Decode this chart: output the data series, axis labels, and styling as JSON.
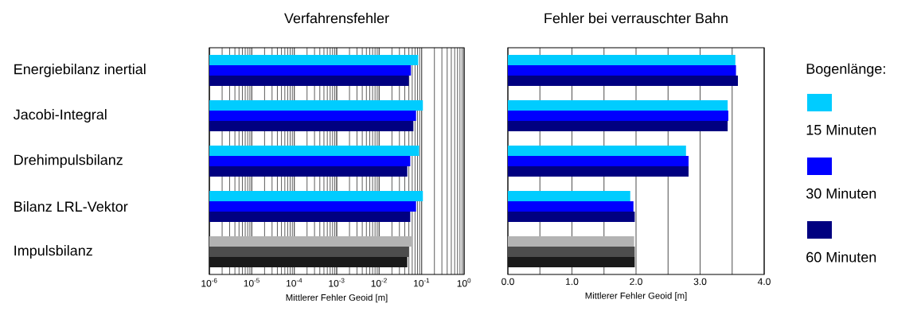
{
  "chart_data": [
    {
      "type": "bar",
      "orientation": "horizontal",
      "title": "Verfahrensfehler",
      "xlabel": "Mittlerer Fehler Geoid [m]",
      "log": "x",
      "grid": "x",
      "categories": [
        "Energiebilanz inertial",
        "Jacobi-Integral",
        "Drehimpulsbilanz",
        "Bilanz LRL-Vektor",
        "Impulsbilanz"
      ],
      "xlim": [
        1e-06,
        1
      ],
      "xticks": [
        {
          "value": 1e-06,
          "label": "10$^{-6}$"
        },
        {
          "value": 1e-05,
          "label": "10$^{-5}$"
        },
        {
          "value": 0.0001,
          "label": "10$^{-4}$"
        },
        {
          "value": 0.001,
          "label": "10$^{-3}$"
        },
        {
          "value": 0.01,
          "label": "10$^{-2}$"
        },
        {
          "value": 0.1,
          "label": "10$^{-1}$"
        },
        {
          "value": 1,
          "label": "10$^{0}$"
        }
      ],
      "series": [
        {
          "colors": [
            "#00ccff",
            "#00ccff",
            "#00ccff",
            "#00ccff",
            "#b3b3b3"
          ],
          "values": [
            0.083,
            0.107,
            0.087,
            0.107,
            0.062
          ]
        },
        {
          "colors": [
            "#0000ff",
            "#0000ff",
            "#0000ff",
            "#0000ff",
            "#4d4d4d"
          ],
          "values": [
            0.056,
            0.074,
            0.054,
            0.074,
            0.05
          ]
        },
        {
          "colors": [
            "#000080",
            "#000080",
            "#000080",
            "#000080",
            "#1a1a1a"
          ],
          "values": [
            0.05,
            0.064,
            0.046,
            0.054,
            0.046
          ]
        }
      ]
    },
    {
      "type": "bar",
      "orientation": "horizontal",
      "title": "Fehler bei verrauschter Bahn",
      "xlabel": "Mittlerer Fehler Geoid [m]",
      "grid": "x",
      "tick_labels": "x",
      "legend": "right",
      "legend_title": "Bogenlänge:",
      "categories": [
        null,
        null,
        null,
        null,
        null
      ],
      "xlim": [
        0,
        4
      ],
      "xticks": [
        {
          "value": 0,
          "label": "0.0"
        },
        {
          "value": 0.5,
          "label": null
        },
        {
          "value": 1,
          "label": "1.0"
        },
        {
          "value": 1.5,
          "label": null
        },
        {
          "value": 2,
          "label": "2.0"
        },
        {
          "value": 2.5,
          "label": null
        },
        {
          "value": 3,
          "label": "3.0"
        },
        {
          "value": 3.5,
          "label": null
        },
        {
          "value": 4,
          "label": "4.0"
        }
      ],
      "series": [
        {
          "name": "15 Minuten",
          "color": "#00ccff",
          "colors": [
            "#00ccff",
            "#00ccff",
            "#00ccff",
            "#00ccff",
            "#b3b3b3"
          ],
          "values": [
            3.55,
            3.43,
            2.78,
            1.91,
            1.97
          ]
        },
        {
          "name": "30 Minuten",
          "color": "#0000ff",
          "colors": [
            "#0000ff",
            "#0000ff",
            "#0000ff",
            "#0000ff",
            "#4d4d4d"
          ],
          "values": [
            3.56,
            3.44,
            2.82,
            1.96,
            1.98
          ]
        },
        {
          "name": "60 Minuten",
          "color": "#000080",
          "colors": [
            "#000080",
            "#000080",
            "#000080",
            "#000080",
            "#1a1a1a"
          ],
          "values": [
            3.59,
            3.43,
            2.82,
            1.98,
            1.98
          ]
        }
      ]
    }
  ]
}
